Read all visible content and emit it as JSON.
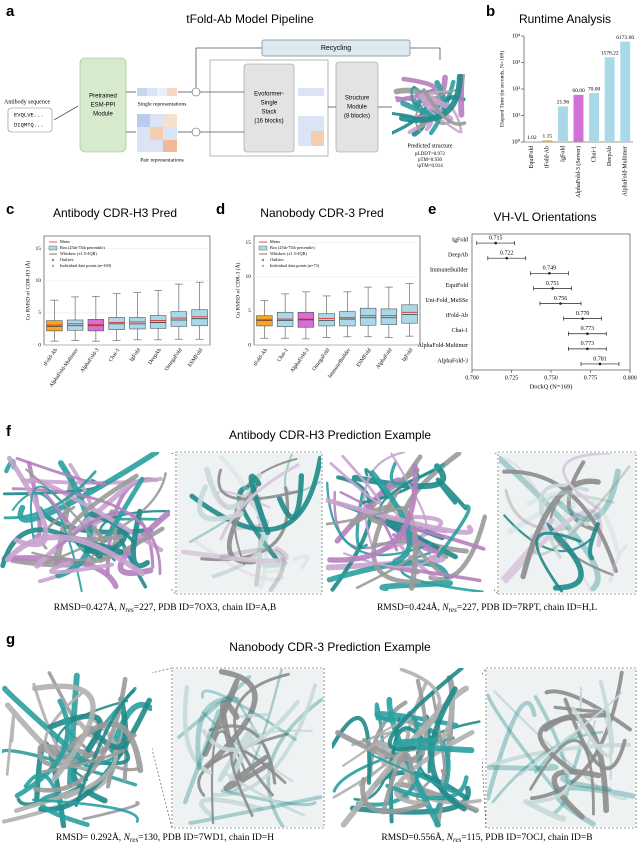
{
  "figure": {
    "panel_labels": {
      "a": "a",
      "b": "b",
      "c": "c",
      "d": "d",
      "e": "e",
      "f": "f",
      "g": "g"
    },
    "pipeline": {
      "title": "tFold-Ab Model Pipeline",
      "input_label": "Antibody sequence",
      "sequences": [
        "EVQLVE...",
        "DIQMTQ..."
      ],
      "esm_module": [
        "Pretrained",
        "ESM-PPI",
        "Module"
      ],
      "single_label": "Single representations",
      "pair_label": "Pair representations",
      "recycling": "Recycling",
      "evoformer": [
        "Evoformer-",
        "Single",
        "Stack",
        "(16 blocks)"
      ],
      "structure_module": [
        "Structure",
        "Module",
        "(8 blocks)"
      ],
      "output_label": "Predicted structure",
      "metrics": [
        "pLDDT=0.972",
        "pTM=0.930",
        "ipTM=0.914"
      ]
    },
    "f": {
      "title": "Antibody CDR-H3 Prediction Example",
      "captions": [
        {
          "prefix": "RMSD=0.427Å, ",
          "symbol": "N",
          "subscript": "res",
          "suffix": "=227, PDB ID=7OX3, chain ID=A,B"
        },
        {
          "prefix": "RMSD=0.424Å, ",
          "symbol": "N",
          "subscript": "res",
          "suffix": "=227, PDB ID=7RPT, chain ID=H,L"
        }
      ]
    },
    "g": {
      "title": "Nanobody CDR-3 Prediction Example",
      "captions": [
        {
          "prefix": "RMSD= 0.292Å, ",
          "symbol": "N",
          "subscript": "res",
          "suffix": "=130, PDB ID=7WD1, chain ID=H"
        },
        {
          "prefix": "RMSD=0.556Å, ",
          "symbol": "N",
          "subscript": "res",
          "suffix": "=115, PDB ID=7OCJ, chain ID=B"
        }
      ]
    }
  },
  "chart_data": [
    {
      "type": "bar",
      "title": "Runtime Analysis",
      "ylabel": "Elapsed Time (in seconds, N=169)",
      "log": true,
      "categories": [
        "EquiFold",
        "tFold-Ab",
        "IgFold",
        "AlphaFold-3 (Server)",
        "Chai-1",
        "DeepAb",
        "AlphaFold-Multimer"
      ],
      "values": [
        1.02,
        1.15,
        21.96,
        60.0,
        70.0,
        1578.22,
        6173.0
      ],
      "value_labels": [
        "1.02",
        "1.15",
        "21.96",
        "60.00",
        "70.00",
        "1578.22",
        "6173.00"
      ],
      "colors": [
        "#a9d8e8",
        "#f5a623",
        "#a9d8e8",
        "#d36fd6",
        "#a9d8e8",
        "#a9d8e8",
        "#a9d8e8"
      ],
      "ylim": [
        1,
        10000
      ],
      "yticks": [
        {
          "value": 1,
          "label": "10⁰"
        },
        {
          "value": 10,
          "label": "10¹"
        },
        {
          "value": 100,
          "label": "10²"
        },
        {
          "value": 1000,
          "label": "10³"
        },
        {
          "value": 10000,
          "label": "10⁴"
        }
      ]
    },
    {
      "type": "box",
      "title": "Antibody CDR-H3 Pred",
      "ylabel": "Cα RMSD of CDR-H3 (Å)",
      "categories": [
        "tFold-Ab",
        "AlphaFold-Multimer",
        "AlphaFold-3",
        "Chai-1",
        "IgFold",
        "DeepAb",
        "OmegaFold",
        "ESMFold"
      ],
      "boxes": [
        {
          "low": 0.6,
          "q1": 2.2,
          "median": 2.9,
          "q3": 3.8,
          "high": 7.0,
          "mean": 3.1
        },
        {
          "low": 0.7,
          "q1": 2.3,
          "median": 3.0,
          "q3": 3.9,
          "high": 7.5,
          "mean": 3.3
        },
        {
          "low": 0.6,
          "q1": 2.2,
          "median": 3.0,
          "q3": 4.0,
          "high": 7.6,
          "mean": 3.2
        },
        {
          "low": 0.7,
          "q1": 2.4,
          "median": 3.3,
          "q3": 4.3,
          "high": 8.0,
          "mean": 3.5
        },
        {
          "low": 0.8,
          "q1": 2.5,
          "median": 3.3,
          "q3": 4.3,
          "high": 8.2,
          "mean": 3.6
        },
        {
          "low": 0.8,
          "q1": 2.6,
          "median": 3.5,
          "q3": 4.6,
          "high": 8.5,
          "mean": 3.8
        },
        {
          "low": 0.9,
          "q1": 2.9,
          "median": 3.9,
          "q3": 5.2,
          "high": 9.5,
          "mean": 4.2
        },
        {
          "low": 0.9,
          "q1": 3.0,
          "median": 4.1,
          "q3": 5.5,
          "high": 9.8,
          "mean": 4.4
        }
      ],
      "colors": [
        "#f5a623",
        "#a9d8e8",
        "#d36fd6",
        "#a9d8e8",
        "#a9d8e8",
        "#a9d8e8",
        "#a9d8e8",
        "#a9d8e8"
      ],
      "legend_items": [
        "Mean",
        "Box (25th-75th percentile)",
        "Whiskers (±1.5×IQR)",
        "Outliers",
        "Individual data points (n=169)"
      ],
      "ylim": [
        0,
        17
      ],
      "yticks": [
        0,
        5,
        10,
        15
      ]
    },
    {
      "type": "box",
      "title": "Nanobody CDR-3 Pred",
      "ylabel": "Cα RMSD of CDR-3 (Å)",
      "categories": [
        "tFold-Ab",
        "Chai-1",
        "AlphaFold-3",
        "OmegaFold",
        "ImmuneBuilder",
        "ESMFold",
        "AlphaFold",
        "IgFold"
      ],
      "boxes": [
        {
          "low": 1.0,
          "q1": 2.8,
          "median": 3.6,
          "q3": 4.3,
          "high": 6.5,
          "mean": 3.7
        },
        {
          "low": 1.0,
          "q1": 2.7,
          "median": 3.6,
          "q3": 4.8,
          "high": 7.5,
          "mean": 3.8
        },
        {
          "low": 0.9,
          "q1": 2.6,
          "median": 3.7,
          "q3": 4.8,
          "high": 7.8,
          "mean": 3.8
        },
        {
          "low": 1.1,
          "q1": 2.8,
          "median": 3.6,
          "q3": 4.6,
          "high": 7.2,
          "mean": 3.9
        },
        {
          "low": 1.2,
          "q1": 2.8,
          "median": 3.8,
          "q3": 4.9,
          "high": 7.8,
          "mean": 4.0
        },
        {
          "low": 1.2,
          "q1": 2.9,
          "median": 4.0,
          "q3": 5.4,
          "high": 8.5,
          "mean": 4.3
        },
        {
          "low": 1.1,
          "q1": 3.0,
          "median": 4.0,
          "q3": 5.3,
          "high": 8.5,
          "mean": 4.3
        },
        {
          "low": 1.3,
          "q1": 3.2,
          "median": 4.5,
          "q3": 5.9,
          "high": 9.0,
          "mean": 4.8
        }
      ],
      "colors": [
        "#f5a623",
        "#a9d8e8",
        "#d36fd6",
        "#a9d8e8",
        "#a9d8e8",
        "#a9d8e8",
        "#a9d8e8",
        "#a9d8e8"
      ],
      "legend_items": [
        "Mean",
        "Box (25th-75th percentile)",
        "Whiskers (±1.5×IQR)",
        "Outliers",
        "Individual data points (n=73)"
      ],
      "ylim": [
        0,
        16
      ],
      "yticks": [
        0,
        5,
        10,
        15
      ]
    },
    {
      "type": "dot",
      "title": "VH-VL Orientations",
      "xlabel": "DockQ (N=169)",
      "categories": [
        "IgFold",
        "DeepAb",
        "ImmuneBuilder",
        "EquiFold",
        "Uni-Fold_MuSSe",
        "tFold-Ab",
        "Chai-1",
        "AlphaFold-Multimer",
        "AlphaFold-3"
      ],
      "values": [
        0.715,
        0.722,
        0.749,
        0.751,
        0.756,
        0.77,
        0.773,
        0.773,
        0.781
      ],
      "value_labels": [
        "0.715",
        "0.722",
        "0.749",
        "0.751",
        "0.756",
        "0.770",
        "0.773",
        "0.773",
        "0.781"
      ],
      "errors": [
        0.012,
        0.012,
        0.012,
        0.012,
        0.013,
        0.012,
        0.012,
        0.012,
        0.012
      ],
      "color": "#222222",
      "xlim": [
        0.7,
        0.8
      ],
      "xticks": [
        {
          "value": 0.7,
          "label": "0.700"
        },
        {
          "value": 0.725,
          "label": "0.725"
        },
        {
          "value": 0.75,
          "label": "0.750"
        },
        {
          "value": 0.775,
          "label": "0.775"
        },
        {
          "value": 0.8,
          "label": "0.800"
        }
      ]
    }
  ]
}
